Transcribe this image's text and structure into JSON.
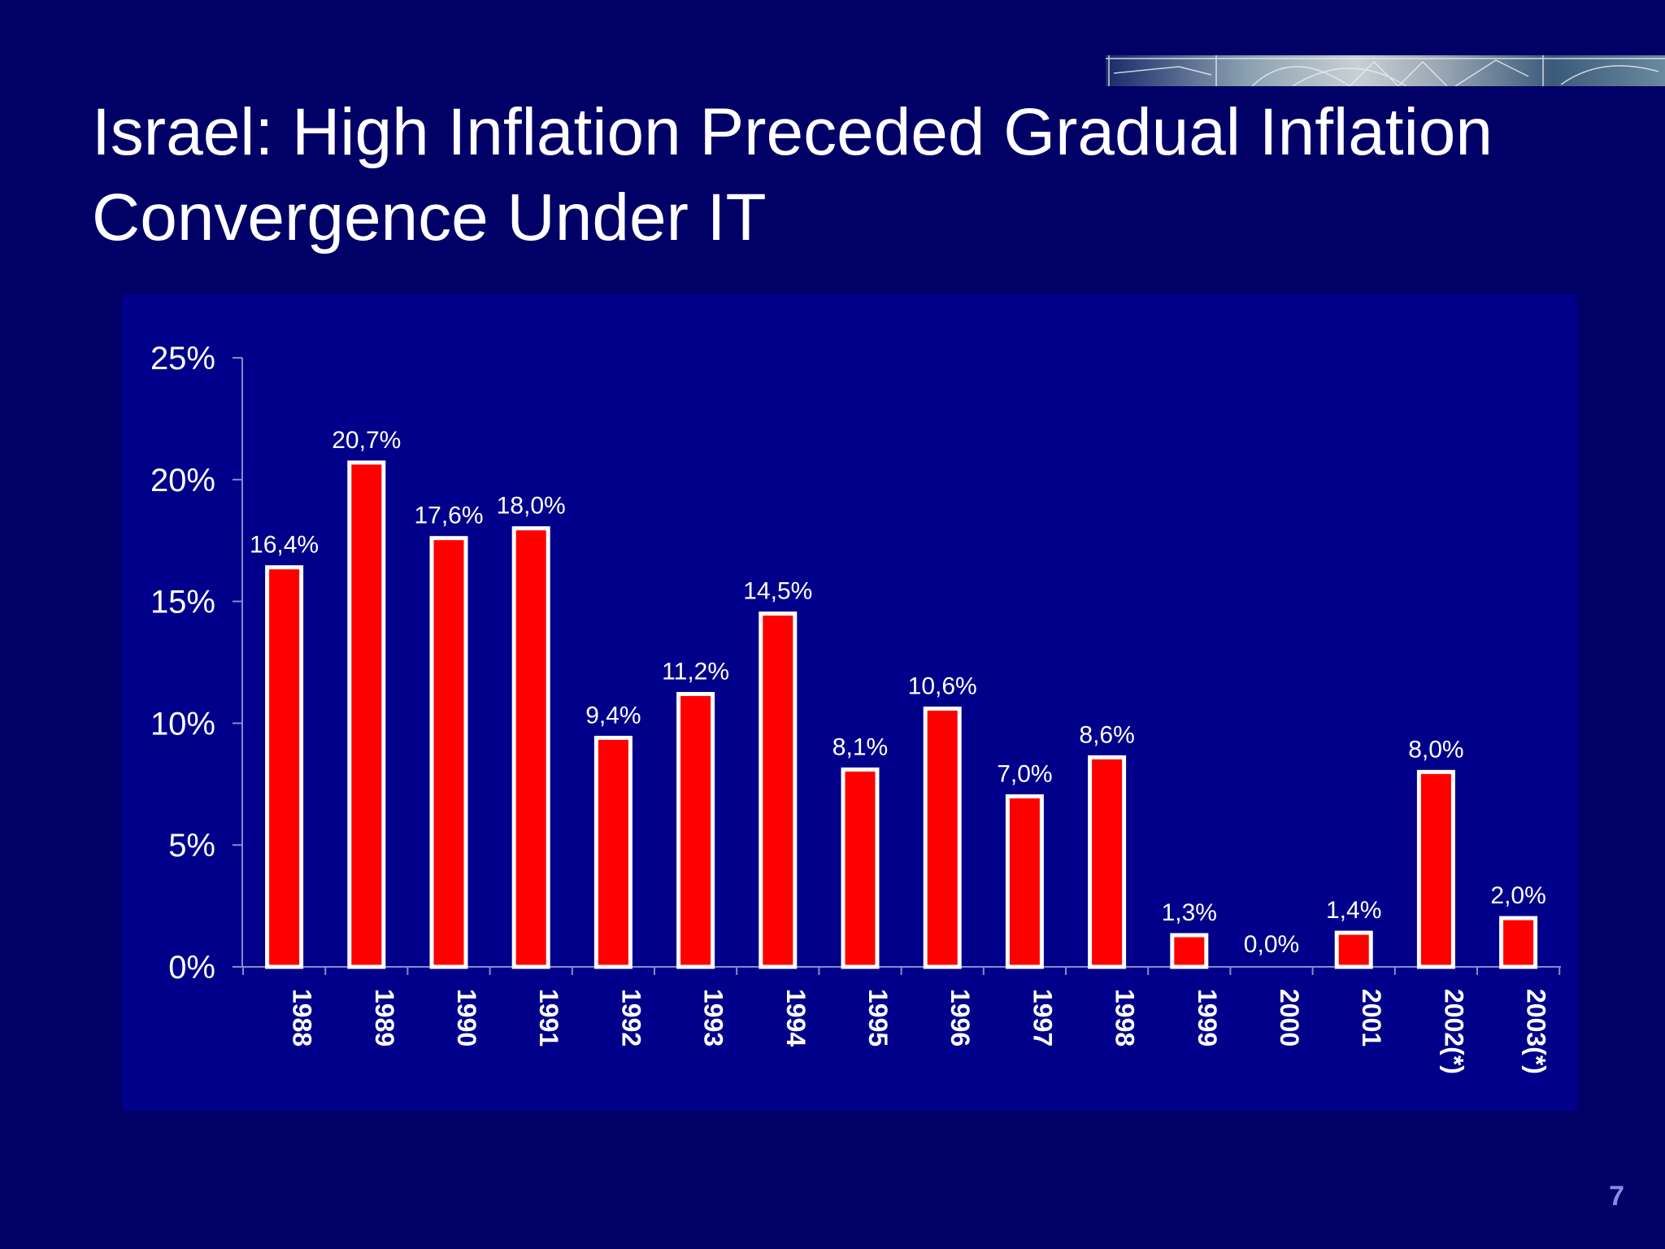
{
  "slide": {
    "title": "Israel:  High Inflation Preceded Gradual Inflation Convergence Under IT",
    "page_number": "7"
  },
  "colors": {
    "background": "#000066",
    "plot_area": "#00008a",
    "bar_fill": "#ff0000",
    "bar_outline": "#ffffff",
    "text": "#ffffff",
    "page_number": "#8a8ae6"
  },
  "banner": {
    "icon": "globe-network-banner"
  },
  "chart_data": {
    "type": "bar",
    "categories": [
      "1988",
      "1989",
      "1990",
      "1991",
      "1992",
      "1993",
      "1994",
      "1995",
      "1996",
      "1997",
      "1998",
      "1999",
      "2000",
      "2001",
      "2002(*)",
      "2003(*)"
    ],
    "values": [
      16.4,
      20.7,
      17.6,
      18.0,
      9.4,
      11.2,
      14.5,
      8.1,
      10.6,
      7.0,
      8.6,
      1.3,
      0.0,
      1.4,
      8.0,
      2.0
    ],
    "data_labels": [
      "16,4%",
      "20,7%",
      "17,6%",
      "18,0%",
      "9,4%",
      "11,2%",
      "14,5%",
      "8,1%",
      "10,6%",
      "7,0%",
      "8,6%",
      "1,3%",
      "0,0%",
      "1,4%",
      "8,0%",
      "2,0%"
    ],
    "y_ticks": [
      {
        "value": 0,
        "label": "0%"
      },
      {
        "value": 5,
        "label": "5%"
      },
      {
        "value": 10,
        "label": "10%"
      },
      {
        "value": 15,
        "label": "15%"
      },
      {
        "value": 20,
        "label": "20%"
      },
      {
        "value": 25,
        "label": "25%"
      }
    ],
    "ylim": [
      0,
      25
    ],
    "xlabel": "",
    "ylabel": "",
    "grid": false,
    "legend": "none",
    "x_tick_rotation": "vertical, bold"
  }
}
